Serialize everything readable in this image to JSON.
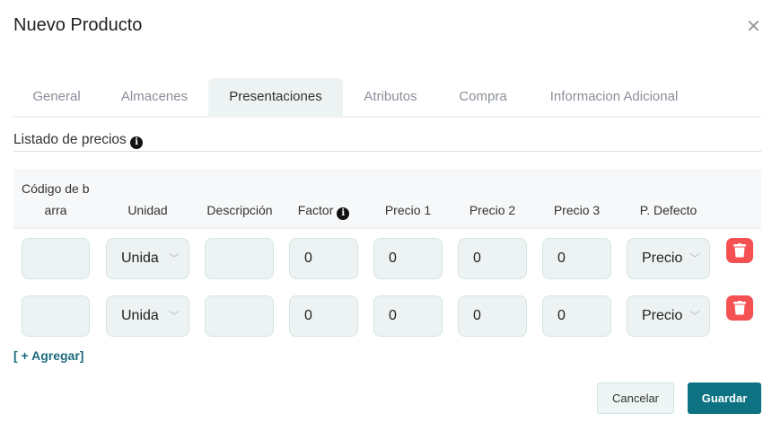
{
  "modal": {
    "title": "Nuevo Producto",
    "close_icon": "close-icon"
  },
  "tabs": [
    {
      "label": "General"
    },
    {
      "label": "Almacenes"
    },
    {
      "label": "Presentaciones",
      "active": true
    },
    {
      "label": "Atributos"
    },
    {
      "label": "Compra"
    },
    {
      "label": "Informacion Adicional"
    }
  ],
  "section": {
    "title": "Listado de precios",
    "info_icon": "info-circle-icon"
  },
  "table": {
    "headers": {
      "codigo_line1": "Código de b",
      "codigo_line2": "arra",
      "unidad": "Unidad",
      "descripcion": "Descripción",
      "factor": "Factor",
      "precio1": "Precio 1",
      "precio2": "Precio 2",
      "precio3": "Precio 3",
      "defecto": "P. Defecto"
    },
    "rows": [
      {
        "codigo": "",
        "unidad": "Unida",
        "descripcion": "",
        "factor": "0",
        "precio1": "0",
        "precio2": "0",
        "precio3": "0",
        "defecto": "Precio"
      },
      {
        "codigo": "",
        "unidad": "Unida",
        "descripcion": "",
        "factor": "0",
        "precio1": "0",
        "precio2": "0",
        "precio3": "0",
        "defecto": "Precio"
      }
    ]
  },
  "add_label": "[ + Agregar]",
  "footer": {
    "cancel": "Cancelar",
    "save": "Guardar"
  },
  "colors": {
    "primary": "#0d7382",
    "danger": "#f55153",
    "input_bg": "#edf3f3"
  }
}
